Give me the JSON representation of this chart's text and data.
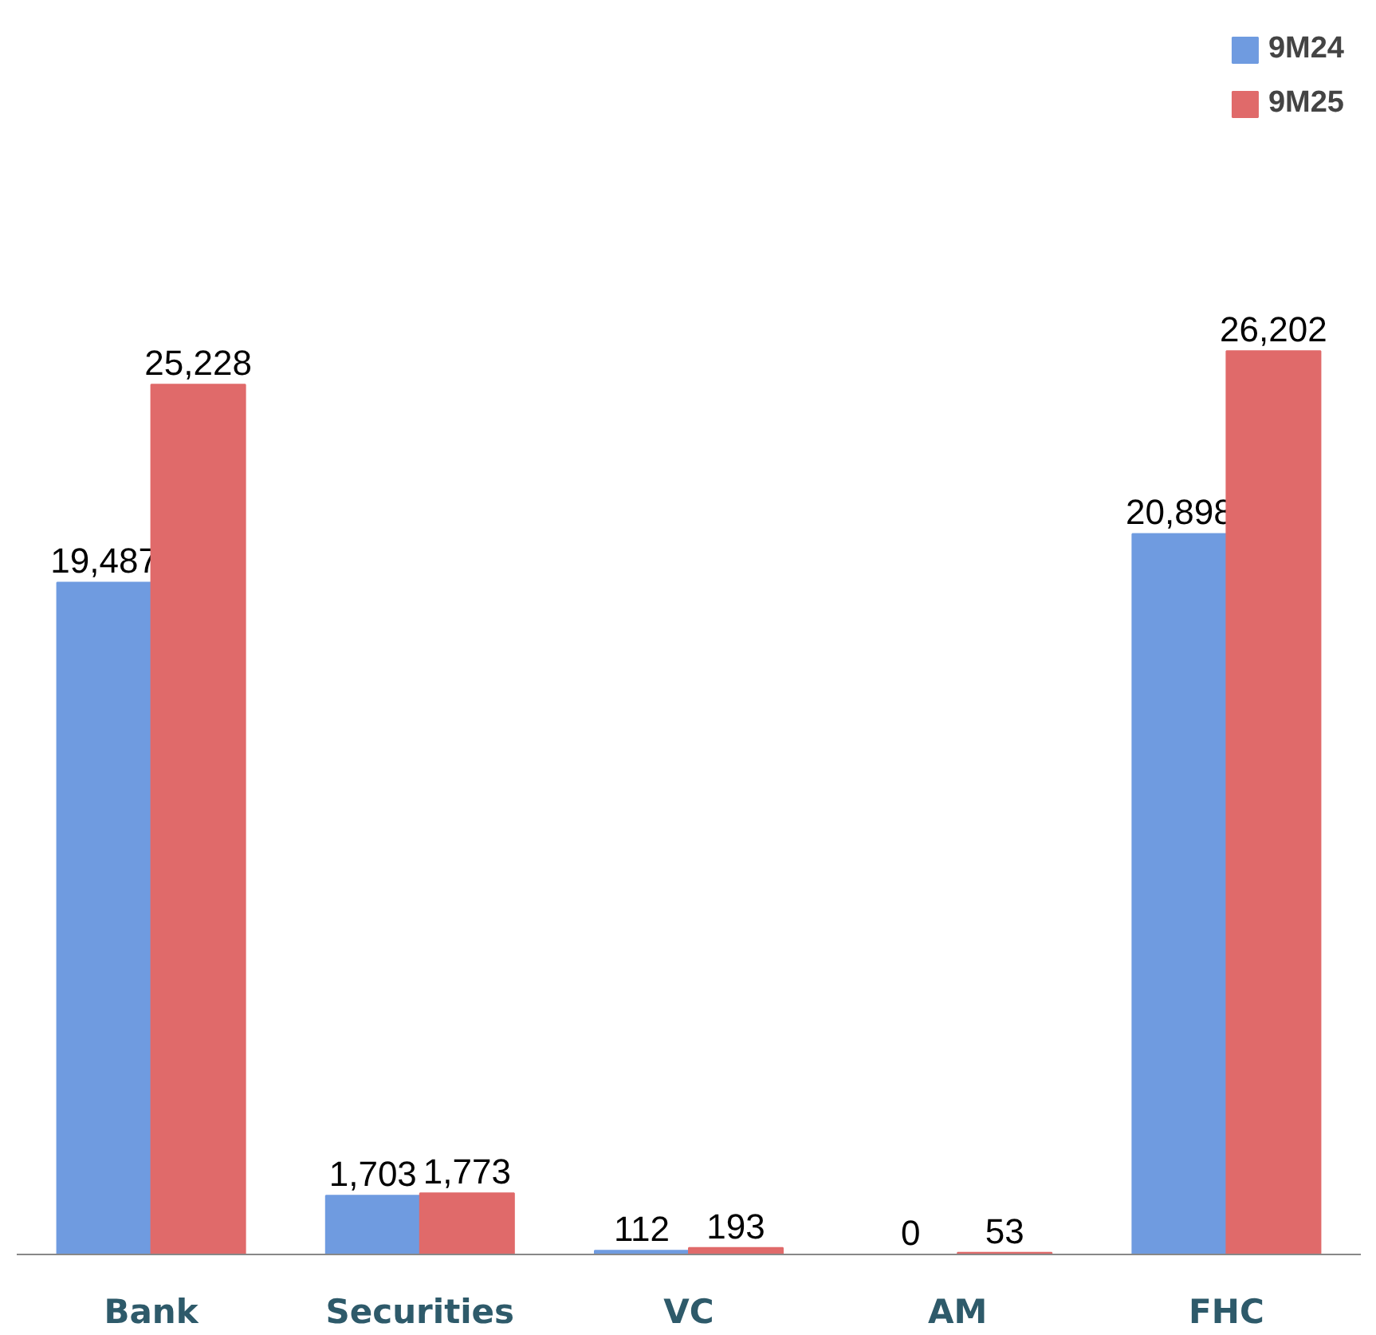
{
  "chart_data": {
    "type": "bar",
    "categories": [
      "Bank",
      "Securities",
      "VC",
      "AM",
      "FHC"
    ],
    "series": [
      {
        "name": "9M24",
        "color": "#6f9be0",
        "values": [
          19487,
          1703,
          112,
          0,
          20898
        ],
        "value_labels": [
          "19,487",
          "1,703",
          "112",
          "0",
          "20,898"
        ]
      },
      {
        "name": "9M25",
        "color": "#e06a6a",
        "values": [
          25228,
          1773,
          193,
          53,
          26202
        ],
        "value_labels": [
          "25,228",
          "1,773",
          "193",
          "53",
          "26,202"
        ]
      }
    ],
    "legend": "top right",
    "grid": false
  }
}
